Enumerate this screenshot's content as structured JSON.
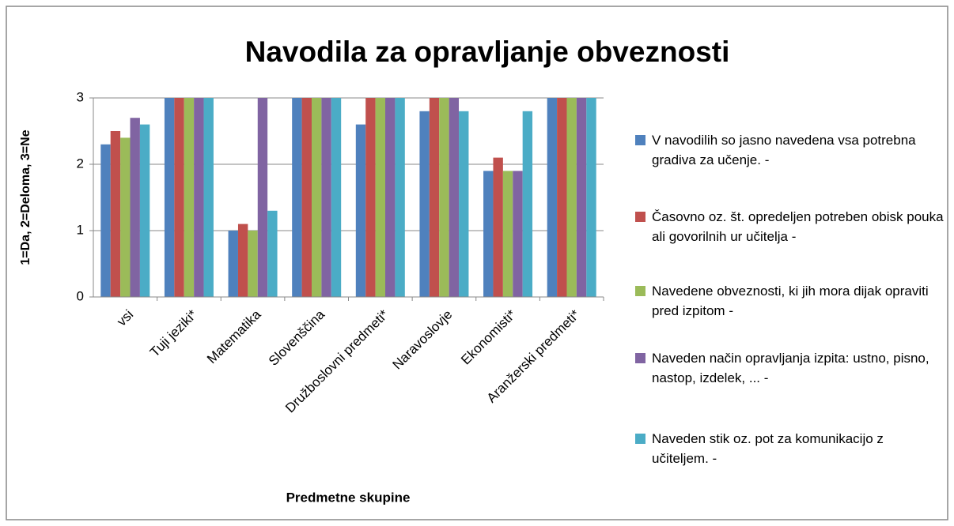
{
  "chart_data": {
    "type": "bar",
    "title": "Navodila za opravljanje obveznosti",
    "x_label": "Predmetne skupine",
    "y_label": "1=Da, 2=Deloma, 3=Ne",
    "categories": [
      "vsi",
      "Tuji jeziki*",
      "Matematika",
      "Slovenščina",
      "Družboslovni predmeti*",
      "Naravoslovje",
      "Ekonomisti*",
      "Aranžerski predmeti*"
    ],
    "series": [
      {
        "name": "V navodilih so jasno navedena vsa potrebna gradiva za učenje. -",
        "color": "#4f81bd",
        "values": [
          2.3,
          3,
          1.0,
          3,
          2.6,
          2.8,
          1.9,
          3
        ]
      },
      {
        "name": "Časovno oz. št. opredeljen potreben obisk pouka ali govorilnih ur učitelja -",
        "color": "#c0504d",
        "values": [
          2.5,
          3,
          1.1,
          3,
          3,
          3,
          2.1,
          3
        ]
      },
      {
        "name": "Navedene obveznosti, ki jih mora dijak opraviti pred izpitom -",
        "color": "#9bbb59",
        "values": [
          2.4,
          3,
          1.0,
          3,
          3,
          3,
          1.9,
          3
        ]
      },
      {
        "name": "Naveden način opravljanja izpita: ustno, pisno, nastop, izdelek, ... -",
        "color": "#8064a2",
        "values": [
          2.7,
          3,
          3,
          3,
          3,
          3,
          1.9,
          3
        ]
      },
      {
        "name": "Naveden stik oz. pot za komunikacijo z učiteljem. -",
        "color": "#4bacc6",
        "values": [
          2.6,
          3,
          1.3,
          3,
          3,
          2.8,
          2.8,
          3
        ]
      }
    ],
    "ylim": [
      0,
      3
    ],
    "yticks": [
      0,
      1,
      2,
      3
    ],
    "grid": true,
    "legend": "right"
  }
}
